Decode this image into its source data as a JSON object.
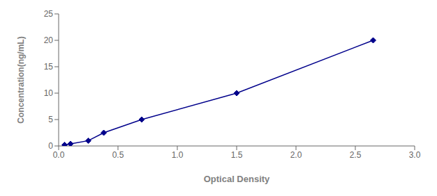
{
  "chart_data": {
    "type": "line",
    "x": [
      0.05,
      0.1,
      0.25,
      0.38,
      0.7,
      1.5,
      2.65
    ],
    "values": [
      0.2,
      0.4,
      1.0,
      2.5,
      5.0,
      10.0,
      20.0
    ],
    "color": "#00008B",
    "marker": "diamond",
    "xlabel": "Optical Density",
    "ylabel": "Concentration(ng/mL)",
    "xlim": [
      0,
      3
    ],
    "ylim": [
      0,
      25
    ],
    "xticks": [
      {
        "value": 0,
        "label": "0.0"
      },
      {
        "value": 0.5,
        "label": "0.5"
      },
      {
        "value": 1,
        "label": "1.0"
      },
      {
        "value": 1.5,
        "label": "1.5"
      },
      {
        "value": 2,
        "label": "2.0"
      },
      {
        "value": 2.5,
        "label": "2.5"
      },
      {
        "value": 3,
        "label": "3.0"
      }
    ],
    "yticks": [
      0,
      5,
      10,
      15,
      20,
      25
    ],
    "grid": false
  }
}
